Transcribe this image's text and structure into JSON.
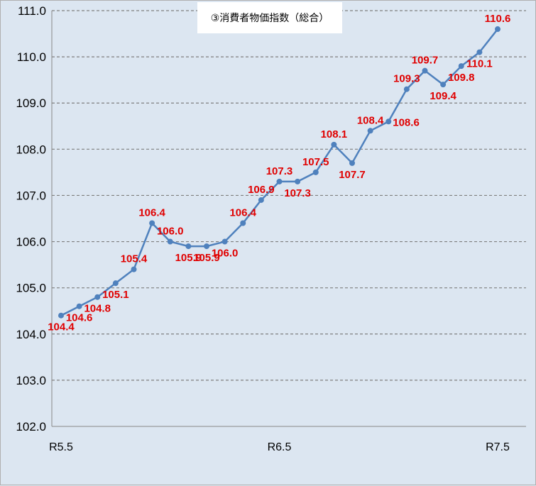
{
  "chart_data": {
    "type": "line",
    "title": "③消費者物価指数（総合）",
    "ylim": [
      102.0,
      111.0
    ],
    "yticks": [
      "102.0",
      "103.0",
      "104.0",
      "105.0",
      "106.0",
      "107.0",
      "108.0",
      "109.0",
      "110.0",
      "111.0"
    ],
    "x_tick_labels": [
      "R5.5",
      "R6.5",
      "R7.5"
    ],
    "grid": "horizontal-dashed",
    "line_color": "#4f81bd",
    "label_color": "#e00000",
    "series": [
      {
        "values": [
          104.4,
          104.6,
          104.8,
          105.1,
          105.4,
          106.4,
          106.0,
          105.9,
          105.9,
          106.0,
          106.4,
          106.9,
          107.3,
          107.3,
          107.5,
          108.1,
          107.7,
          108.4,
          108.6,
          109.3,
          109.7,
          109.4,
          109.8,
          110.1,
          110.6
        ],
        "data_labels": [
          "104.4",
          "104.6",
          "104.8",
          "105.1",
          "105.4",
          "106.4",
          "106.0",
          "105.9",
          "105.9",
          "106.0",
          "106.4",
          "106.9",
          "107.3",
          "107.3",
          "107.5",
          "108.1",
          "107.7",
          "108.4",
          "108.6",
          "109.3",
          "109.7",
          "109.4",
          "109.8",
          "110.1",
          "110.6"
        ],
        "label_positions": [
          "below",
          "below",
          "below",
          "below",
          "above",
          "above",
          "above",
          "below",
          "below",
          "below",
          "above",
          "above",
          "above",
          "below",
          "above",
          "above",
          "below",
          "above",
          "right",
          "above",
          "above",
          "below",
          "below",
          "below",
          "above"
        ]
      }
    ]
  }
}
